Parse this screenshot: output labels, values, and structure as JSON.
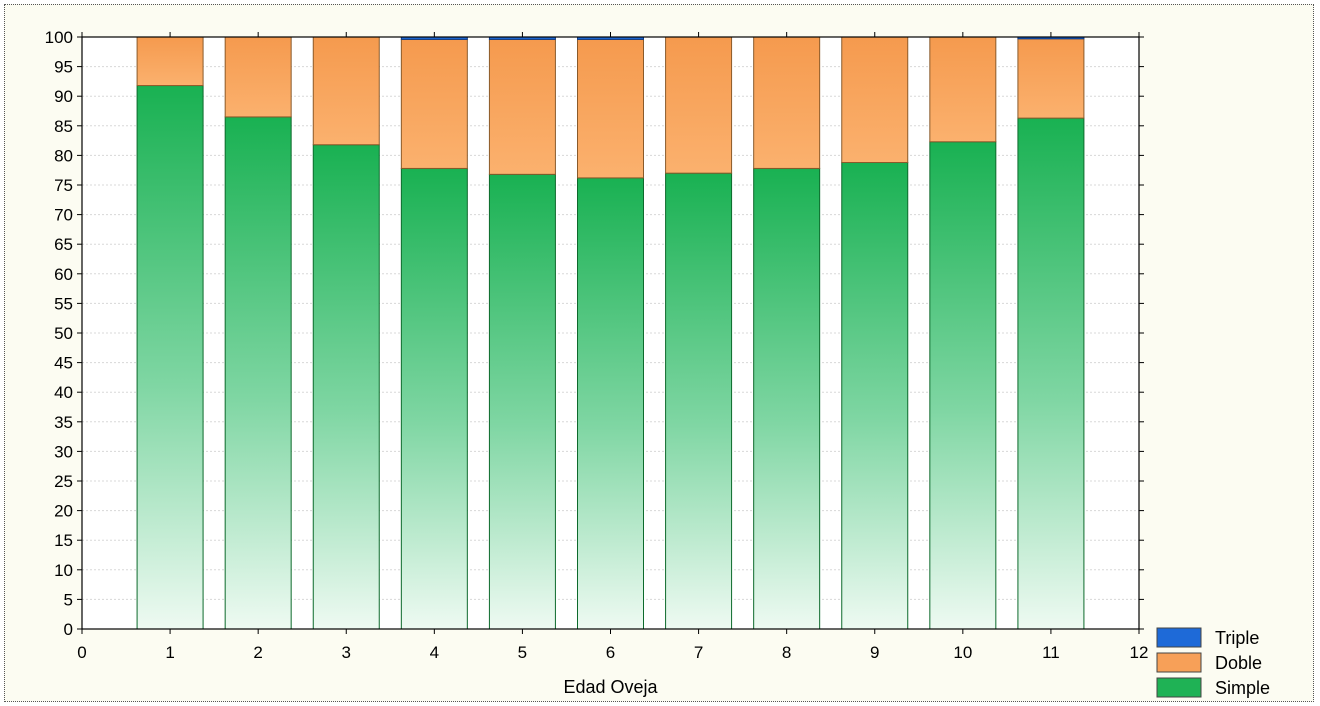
{
  "chart_data": {
    "type": "bar",
    "stacked": true,
    "title": "",
    "xlabel": "Edad Oveja",
    "ylabel": "",
    "xlim": [
      0,
      12
    ],
    "xticks": [
      "0",
      "1",
      "2",
      "3",
      "4",
      "5",
      "6",
      "7",
      "8",
      "9",
      "10",
      "11",
      "12"
    ],
    "ylim": [
      0,
      100
    ],
    "yticks": [
      "0",
      "5",
      "10",
      "15",
      "20",
      "25",
      "30",
      "35",
      "40",
      "45",
      "50",
      "55",
      "60",
      "65",
      "70",
      "75",
      "80",
      "85",
      "90",
      "95",
      "100"
    ],
    "grid": true,
    "legend_position": "bottom-right",
    "categories": [
      1,
      2,
      3,
      4,
      5,
      6,
      7,
      8,
      9,
      10,
      11
    ],
    "series": [
      {
        "name": "Simple",
        "color": "#1fb255",
        "values": [
          91.8,
          86.5,
          81.8,
          77.8,
          76.8,
          76.2,
          77.0,
          77.8,
          78.8,
          82.3,
          86.3
        ]
      },
      {
        "name": "Doble",
        "color": "#f7a058",
        "values": [
          8.2,
          13.5,
          18.2,
          21.8,
          22.8,
          23.4,
          23.0,
          22.2,
          21.2,
          17.7,
          13.4
        ]
      },
      {
        "name": "Triple",
        "color": "#1e6ad8",
        "values": [
          0,
          0,
          0,
          0.4,
          0.4,
          0.4,
          0,
          0,
          0,
          0,
          0.3
        ]
      }
    ]
  }
}
